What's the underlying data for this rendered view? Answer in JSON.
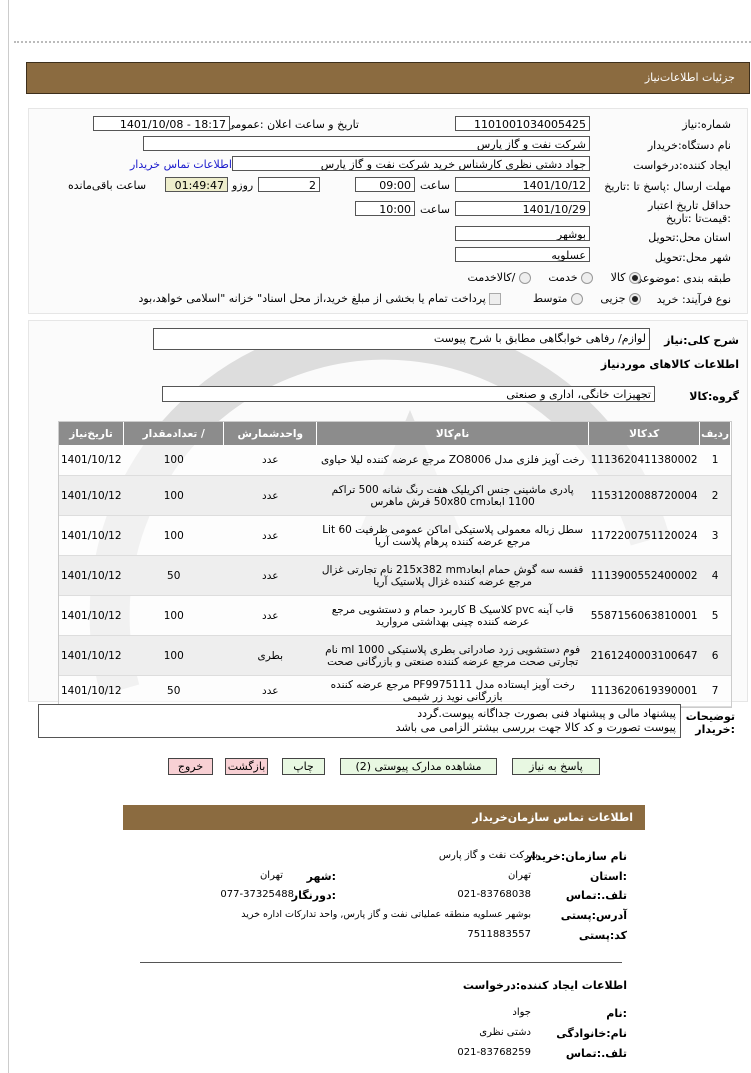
{
  "header": {
    "title": "جزئیات  اطلاعات‌نیاز"
  },
  "form": {
    "need_number_label": "شماره:نیاز",
    "need_number": "1101001034005425",
    "announce_label": "تاریخ و ساعت اعلان :عمومی",
    "announce_value": "1401/10/08 - 18:17",
    "buyer_label": "نام دستگاه:خریدار",
    "buyer": "شرکت نفت و گاز پارس",
    "creator_label": "ایجاد کننده:درخواست",
    "creator": "جواد دشتی نظری کارشناس خرید  شرکت نفت و گاز پارس",
    "contact_link": "اطلاعات تماس خریدار",
    "deadline_label": "مهلت ارسال :پاسخ تا :تاریخ",
    "deadline_date": "1401/10/12",
    "time_label": "ساعت",
    "deadline_time": "09:00",
    "days": "2",
    "days_label": "روزو",
    "remaining": "01:49:47",
    "remaining_label": "ساعت باقی‌مانده",
    "validity_label": "حداقل تاریخ اعتبار :قیمت‌تا :تاریخ",
    "validity_date": "1401/10/29",
    "validity_time": "10:00",
    "province_label": "استان محل:تحویل",
    "province": "بوشهر",
    "city_label": "شهر محل:تحویل",
    "city": "عسلویه",
    "category_label": "طبقه بندی :موضوعی",
    "category_options": [
      "کالا",
      "خدمت",
      "/کالاخدمت"
    ],
    "category_selected": "کالا",
    "process_label": "نوع فرآیند: خرید",
    "process_options": [
      "جزیی",
      "متوسط"
    ],
    "process_selected": "جزیی",
    "payment_note": "پرداخت تمام یا بخشی از مبلغ خرید،از محل اسناد\" خزانه \"اسلامی خواهد،بود"
  },
  "goods": {
    "summary_label": "شرح کلی:نیاز",
    "summary": "لوازم/ رفاهی خوابگاهی مطابق با شرح پیوست",
    "section_title": "اطلاعات  کالاهای موردنیاز",
    "group_label": "گروه:کالا",
    "group": "تجهیزات خانگی، اداری و صنعتی",
    "columns": [
      "ردیف",
      "کدکالا",
      "نام‌کالا",
      "واحدشمارش",
      "/ تعدادمقدار",
      "تاریخ‌نیاز"
    ],
    "rows": [
      {
        "n": "1",
        "code": "1113620411380002",
        "name": "رخت آویز فلزی مدل ZO8006 مرجع عرضه کننده لیلا حیاوی",
        "unit": "عدد",
        "qty": "100",
        "date": "1401/10/12"
      },
      {
        "n": "2",
        "code": "1153120088720004",
        "name": "پادری ماشینی جنس اکریلیک هفت رنگ شانه 500 تراکم 1100 ابعاد50x80 cm فرش ماهرس",
        "unit": "عدد",
        "qty": "100",
        "date": "1401/10/12"
      },
      {
        "n": "3",
        "code": "1172200751120024",
        "name": "سطل زباله معمولی پلاستیکی اماکن عمومی ظرفیت 60 Lit مرجع عرضه کننده پرهام پلاست آریا",
        "unit": "عدد",
        "qty": "100",
        "date": "1401/10/12"
      },
      {
        "n": "4",
        "code": "1113900552400002",
        "name": "قفسه سه گوش حمام ابعاد215x382 mm نام تجارتی غزال مرجع عرضه کننده غزال پلاستیک آریا",
        "unit": "عدد",
        "qty": "50",
        "date": "1401/10/12"
      },
      {
        "n": "5",
        "code": "5587156063810001",
        "name": "قاب آینه pvc کلاسیک B کاربرد حمام و دستشویی مرجع عرضه کننده چینی بهداشتی مروارید",
        "unit": "عدد",
        "qty": "100",
        "date": "1401/10/12"
      },
      {
        "n": "6",
        "code": "2161240003100647",
        "name": "فوم دستشویی زرد صادراتی بطری پلاستیکی 1000 ml نام تجارتی صحت مرجع عرضه کننده صنعتی و بازرگانی صحت",
        "unit": "بطری",
        "qty": "100",
        "date": "1401/10/12"
      },
      {
        "n": "7",
        "code": "1113620619390001",
        "name": "رخت آویز ایستاده مدل PF9975111 مرجع عرضه کننده بازرگانی نوید زر شیمی",
        "unit": "عدد",
        "qty": "50",
        "date": "1401/10/12"
      }
    ],
    "notes_label": "توضیحات :خریدار",
    "notes": [
      "پیشنهاد مالی و پیشنهاد فنی بصورت جداگانه پیوست.گردد",
      "پیوست تصورت و کد کالا جهت بررسی بیشتر الزامی می باشد"
    ]
  },
  "buttons": {
    "reply": "پاسخ به نیاز",
    "attachments": "مشاهده مدارک پیوستی (2)",
    "print": "چاپ",
    "back": "بازگشت",
    "exit": "خروج"
  },
  "contact": {
    "title": "اطلاعات  تماس  سازمان‌خریدار",
    "org_label": "نام سازمان:خریدار",
    "org": "شرکت نفت و گاز پارس",
    "province_label": ":استان",
    "province": "تهران",
    "city_label": ":شهر",
    "city": "تهران",
    "phone_label": "تلف.:تماس",
    "phone": "021-83768038",
    "fax_label": ":دورنگار",
    "fax": "077-37325488",
    "address_label": "آدرس:پستی",
    "address": "بوشهر عسلویه منطقه عملیاتی نفت و گاز پارس, واحد تدارکات اداره خرید",
    "postal_label": "کد:پستی",
    "postal": "7511883557"
  },
  "creator": {
    "title": "اطلاعات ایجاد کننده:درخواست",
    "name_label": ":نام",
    "name": "جواد",
    "family_label": "نام:خانوادگی",
    "family": "دشتی نظری",
    "phone_label": "تلف.:تماس",
    "phone": "021-83768259"
  },
  "colors": {
    "bar": "#8b6b40",
    "remaining_bg": "#eeeecc",
    "button_green": "#e8f8e2",
    "button_red": "#f8d0d4",
    "table_header": "#8c8c8c"
  }
}
